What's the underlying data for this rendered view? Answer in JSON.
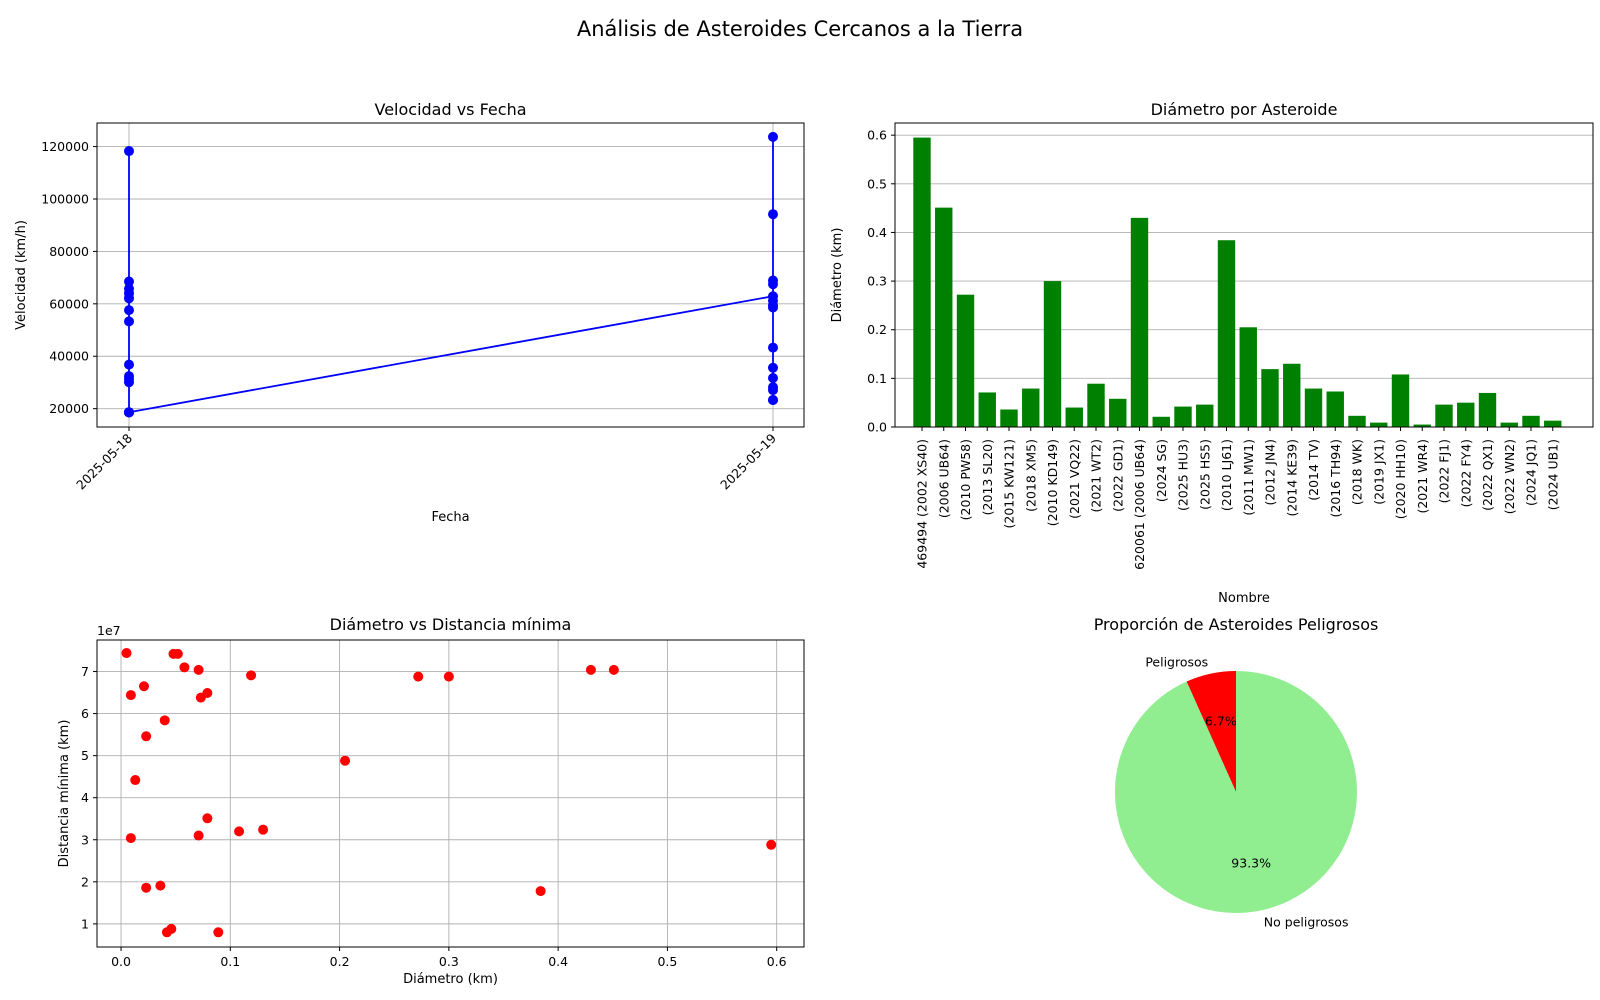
{
  "title": "Análisis de Asteroides Cercanos a la Tierra",
  "chart_data": [
    {
      "type": "line",
      "title": "Velocidad vs Fecha",
      "xlabel": "Fecha",
      "ylabel": "Velocidad (km/h)",
      "x_ticks": [
        "2025-05-18",
        "2025-05-19"
      ],
      "y_ticks": [
        20000,
        40000,
        60000,
        80000,
        100000,
        120000
      ],
      "ylim": [
        13000,
        129000
      ],
      "grid": true,
      "color": "#0000ff",
      "series": [
        {
          "x": [
            "2025-05-18",
            "2025-05-18",
            "2025-05-18",
            "2025-05-18",
            "2025-05-18",
            "2025-05-18",
            "2025-05-18",
            "2025-05-18",
            "2025-05-18",
            "2025-05-18",
            "2025-05-18",
            "2025-05-18",
            "2025-05-18",
            "2025-05-18",
            "2025-05-18",
            "2025-05-19",
            "2025-05-19",
            "2025-05-19",
            "2025-05-19",
            "2025-05-19",
            "2025-05-19",
            "2025-05-19",
            "2025-05-19",
            "2025-05-19",
            "2025-05-19",
            "2025-05-19",
            "2025-05-19",
            "2025-05-19",
            "2025-05-19",
            "2025-05-19"
          ],
          "y": [
            118300,
            68500,
            65800,
            64000,
            62100,
            57600,
            53300,
            36800,
            32400,
            31300,
            30100,
            18600,
            18600,
            18600,
            18600,
            62900,
            123700,
            94200,
            68900,
            67500,
            61200,
            59400,
            58600,
            43300,
            35600,
            31700,
            28200,
            27100,
            23300,
            23300
          ]
        }
      ]
    },
    {
      "type": "bar",
      "title": "Diámetro por Asteroide",
      "xlabel": "Nombre",
      "ylabel": "Diámetro (km)",
      "ylim": [
        0,
        0.625
      ],
      "y_ticks": [
        0.0,
        0.1,
        0.2,
        0.3,
        0.4,
        0.5,
        0.6
      ],
      "grid": true,
      "color": "#008000",
      "categories": [
        "469494 (2002 XS40)",
        "(2006 UB64)",
        "(2010 PW58)",
        "(2013 SL20)",
        "(2015 KW121)",
        "(2018 XM5)",
        "(2010 KD149)",
        "(2021 VQ22)",
        "(2021 WT2)",
        "(2022 GD1)",
        "620061 (2006 UB64)",
        "(2024 SG)",
        "(2025 HU3)",
        "(2025 HS5)",
        "(2010 LJ61)",
        "(2011 MW1)",
        "(2012 JN4)",
        "(2014 KE39)",
        "(2014 TV)",
        "(2016 TH94)",
        "(2018 WK)",
        "(2019 JX1)",
        "(2020 HH10)",
        "(2021 WR4)",
        "(2022 FJ1)",
        "(2022 FY4)",
        "(2022 QX1)",
        "(2022 WN2)",
        "(2024 JQ1)",
        "(2024 UB1)"
      ],
      "values": [
        0.595,
        0.451,
        0.272,
        0.071,
        0.036,
        0.079,
        0.3,
        0.04,
        0.089,
        0.058,
        0.43,
        0.021,
        0.042,
        0.046,
        0.384,
        0.205,
        0.119,
        0.13,
        0.079,
        0.073,
        0.023,
        0.009,
        0.108,
        0.005,
        0.046,
        0.05,
        0.07,
        0.009,
        0.023,
        0.013
      ]
    },
    {
      "type": "scatter",
      "title": "Diámetro vs Distancia mínima",
      "xlabel": "Diámetro (km)",
      "ylabel": "Distancia mínima (km)",
      "y_multiplier": "1e7",
      "xlim": [
        -0.022,
        0.625
      ],
      "ylim": [
        4500000,
        77500000
      ],
      "x_ticks": [
        0.0,
        0.1,
        0.2,
        0.3,
        0.4,
        0.5,
        0.6
      ],
      "y_ticks": [
        1,
        2,
        3,
        4,
        5,
        6,
        7
      ],
      "grid": true,
      "color": "#ff0000",
      "points": [
        [
          0.005,
          74400000
        ],
        [
          0.048,
          74200000
        ],
        [
          0.052,
          74200000
        ],
        [
          0.058,
          71000000
        ],
        [
          0.071,
          70400000
        ],
        [
          0.43,
          70400000
        ],
        [
          0.451,
          70400000
        ],
        [
          0.119,
          69100000
        ],
        [
          0.272,
          68800000
        ],
        [
          0.3,
          68800000
        ],
        [
          0.021,
          66500000
        ],
        [
          0.009,
          64400000
        ],
        [
          0.079,
          64900000
        ],
        [
          0.073,
          63800000
        ],
        [
          0.04,
          58400000
        ],
        [
          0.023,
          54600000
        ],
        [
          0.205,
          48800000
        ],
        [
          0.013,
          44200000
        ],
        [
          0.079,
          35100000
        ],
        [
          0.13,
          32400000
        ],
        [
          0.108,
          32000000
        ],
        [
          0.071,
          31000000
        ],
        [
          0.009,
          30400000
        ],
        [
          0.595,
          28800000
        ],
        [
          0.036,
          19100000
        ],
        [
          0.023,
          18600000
        ],
        [
          0.384,
          17800000
        ],
        [
          0.046,
          8800000
        ],
        [
          0.042,
          8000000
        ],
        [
          0.089,
          8000000
        ]
      ]
    },
    {
      "type": "pie",
      "title": "Proporción de Asteroides Peligrosos",
      "slices": [
        {
          "label": "Peligrosos",
          "value": 6.7,
          "pct": "6.7%",
          "color": "#ff0000"
        },
        {
          "label": "No peligrosos",
          "value": 93.3,
          "pct": "93.3%",
          "color": "#90ee90"
        }
      ],
      "start_angle": 90,
      "direction": "counterclockwise"
    }
  ]
}
